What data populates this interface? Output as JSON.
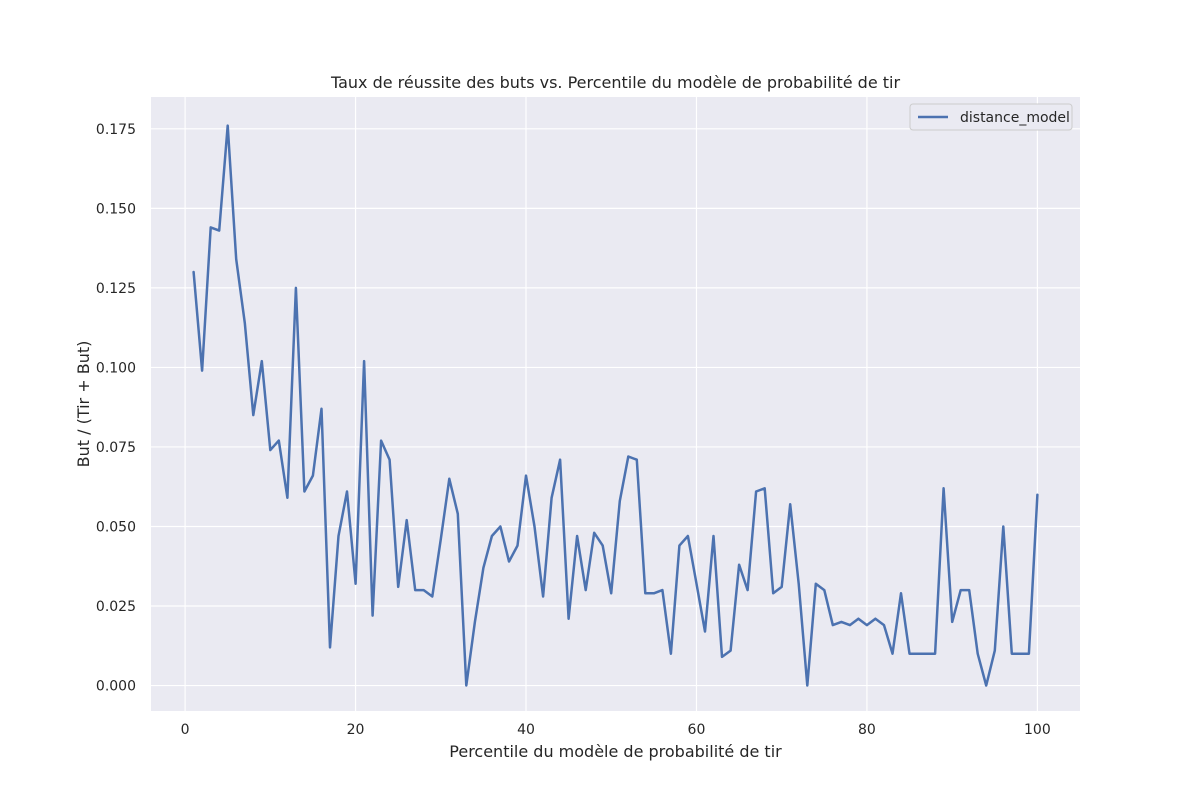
{
  "chart_data": {
    "type": "line",
    "title": "Taux de réussite des buts vs. Percentile du modèle de probabilité de tir",
    "xlabel": "Percentile du modèle de probabilité de tir",
    "ylabel": "But / (Tir + But)",
    "xlim": [
      -4,
      105
    ],
    "ylim": [
      -0.008,
      0.185
    ],
    "xticks": [
      0,
      20,
      40,
      60,
      80,
      100
    ],
    "xtick_labels": [
      "0",
      "20",
      "40",
      "60",
      "80",
      "100"
    ],
    "yticks": [
      0.0,
      0.025,
      0.05,
      0.075,
      0.1,
      0.125,
      0.15,
      0.175
    ],
    "ytick_labels": [
      "0.000",
      "0.025",
      "0.050",
      "0.075",
      "0.100",
      "0.125",
      "0.150",
      "0.175"
    ],
    "grid": true,
    "legend_position": "top-right",
    "series": [
      {
        "name": "distance_model",
        "color": "#4c72b0",
        "x": [
          1,
          2,
          3,
          4,
          5,
          6,
          7,
          8,
          9,
          10,
          11,
          12,
          13,
          14,
          15,
          16,
          17,
          18,
          19,
          20,
          21,
          22,
          23,
          24,
          25,
          26,
          27,
          28,
          29,
          30,
          31,
          32,
          33,
          34,
          35,
          36,
          37,
          38,
          39,
          40,
          41,
          42,
          43,
          44,
          45,
          46,
          47,
          48,
          49,
          50,
          51,
          52,
          53,
          54,
          55,
          56,
          57,
          58,
          59,
          60,
          61,
          62,
          63,
          64,
          65,
          66,
          67,
          68,
          69,
          70,
          71,
          72,
          73,
          74,
          75,
          76,
          77,
          78,
          79,
          80,
          81,
          82,
          83,
          84,
          85,
          86,
          87,
          88,
          89,
          90,
          91,
          92,
          93,
          94,
          95,
          96,
          97,
          98,
          99,
          100
        ],
        "values": [
          0.13,
          0.099,
          0.144,
          0.143,
          0.176,
          0.134,
          0.114,
          0.085,
          0.102,
          0.074,
          0.077,
          0.059,
          0.125,
          0.061,
          0.066,
          0.087,
          0.012,
          0.047,
          0.061,
          0.032,
          0.102,
          0.022,
          0.077,
          0.071,
          0.031,
          0.052,
          0.03,
          0.03,
          0.028,
          0.046,
          0.065,
          0.054,
          0.0,
          0.02,
          0.037,
          0.047,
          0.05,
          0.039,
          0.044,
          0.066,
          0.05,
          0.028,
          0.059,
          0.071,
          0.021,
          0.047,
          0.03,
          0.048,
          0.044,
          0.029,
          0.058,
          0.072,
          0.071,
          0.029,
          0.029,
          0.03,
          0.01,
          0.044,
          0.047,
          0.032,
          0.017,
          0.047,
          0.009,
          0.011,
          0.038,
          0.03,
          0.061,
          0.062,
          0.029,
          0.031,
          0.057,
          0.032,
          0.0,
          0.032,
          0.03,
          0.019,
          0.02,
          0.019,
          0.021,
          0.019,
          0.021,
          0.019,
          0.01,
          0.029,
          0.01,
          0.01,
          0.01,
          0.01,
          0.062,
          0.02,
          0.03,
          0.03,
          0.01,
          0.0,
          0.011,
          0.05,
          0.01,
          0.01,
          0.01,
          0.06
        ]
      }
    ]
  }
}
